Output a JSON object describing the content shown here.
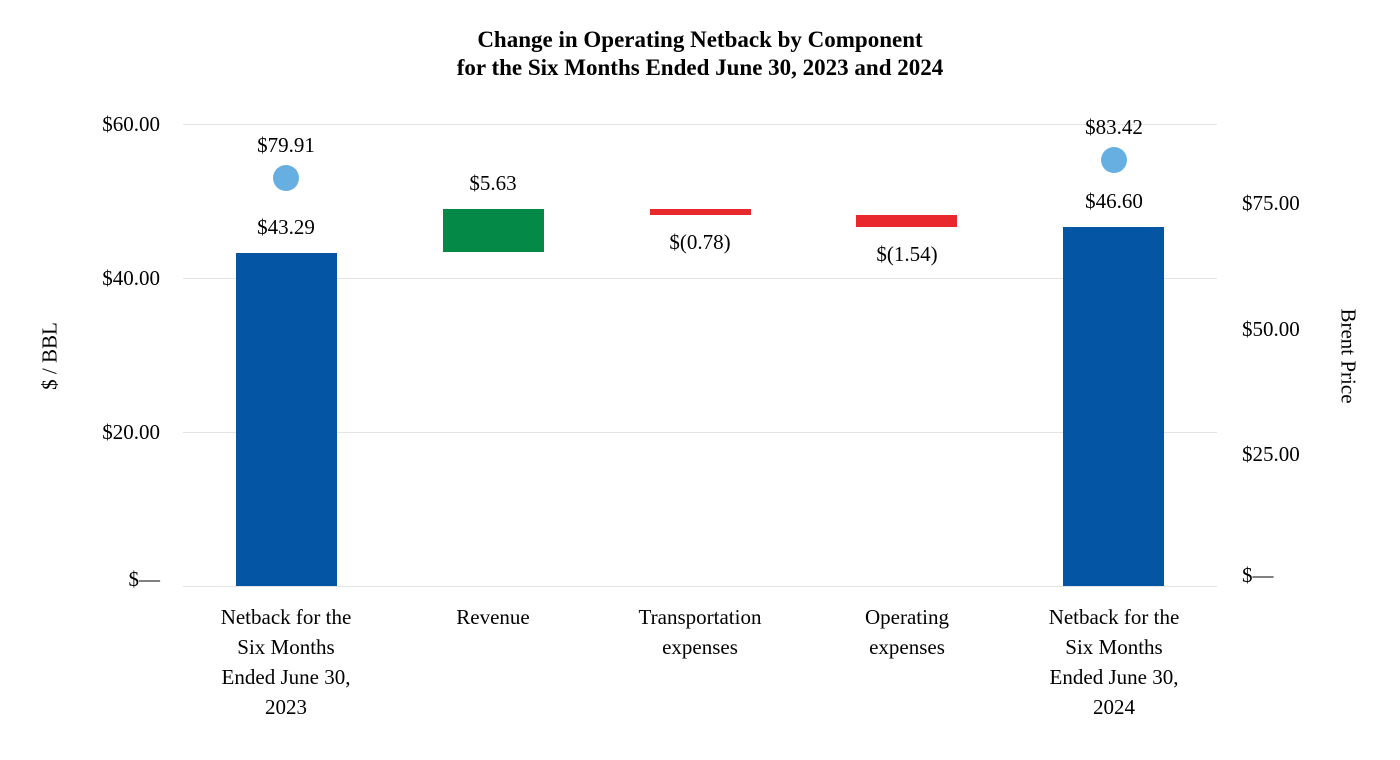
{
  "chart_data": {
    "type": "bar",
    "subtype": "waterfall combo chart with scatter markers on a secondary axis",
    "title": "Change in Operating Netback by Component for the Six Months Ended June 30, 2023 and 2024",
    "title_lines": [
      "Change in Operating Netback by Component",
      "for the Six Months Ended June 30, 2023 and 2024"
    ],
    "left_axis": {
      "title": "$ / BBL",
      "range": [
        0,
        60
      ],
      "grid": true,
      "ticks": [
        {
          "value": 60,
          "label": "$60.00"
        },
        {
          "value": 40,
          "label": "$40.00"
        },
        {
          "value": 20,
          "label": "$20.00"
        },
        {
          "value": 0,
          "label": "$—"
        }
      ]
    },
    "right_axis": {
      "title": "Brent Price",
      "range": [
        0,
        90
      ],
      "grid": false,
      "ticks": [
        {
          "value": 75,
          "label": "$75.00"
        },
        {
          "value": 50,
          "label": "$50.00"
        },
        {
          "value": 25,
          "label": "$25.00"
        },
        {
          "value": 0,
          "label": "$—"
        }
      ]
    },
    "categories": [
      [
        "Netback for the",
        "Six Months",
        "Ended June 30,",
        "2023"
      ],
      [
        "Revenue"
      ],
      [
        "Transportation",
        "expenses"
      ],
      [
        "Operating",
        "expenses"
      ],
      [
        "Netback for the",
        "Six Months",
        "Ended June 30,",
        "2024"
      ]
    ],
    "bars": [
      {
        "name": "netback-2023",
        "start": 0,
        "end": 43.29,
        "value": 43.29,
        "label": "$43.29",
        "color": "blue",
        "label_side": "above"
      },
      {
        "name": "revenue",
        "start": 43.29,
        "end": 48.92,
        "value": 5.63,
        "label": "$5.63",
        "color": "green",
        "label_side": "above"
      },
      {
        "name": "transportation-expenses",
        "start": 48.92,
        "end": 48.14,
        "value": -0.78,
        "label": "$(0.78)",
        "color": "red",
        "label_side": "below"
      },
      {
        "name": "operating-expenses",
        "start": 48.14,
        "end": 46.6,
        "value": -1.54,
        "label": "$(1.54)",
        "color": "red",
        "label_side": "below"
      },
      {
        "name": "netback-2024",
        "start": 0,
        "end": 46.6,
        "value": 46.6,
        "label": "$46.60",
        "color": "blue",
        "label_side": "above"
      }
    ],
    "markers": [
      {
        "bar_index": 0,
        "axis": "right",
        "value": 79.91,
        "label": "$79.91"
      },
      {
        "bar_index": 4,
        "axis": "right",
        "value": 83.42,
        "label": "$83.42"
      }
    ],
    "legend": null,
    "colors": {
      "blue": "#0455A4",
      "green": "#048A46",
      "red": "#E8282C",
      "marker_blue": "#66AFE0",
      "gridline": "#E4E4E4",
      "text": "#000000"
    }
  }
}
